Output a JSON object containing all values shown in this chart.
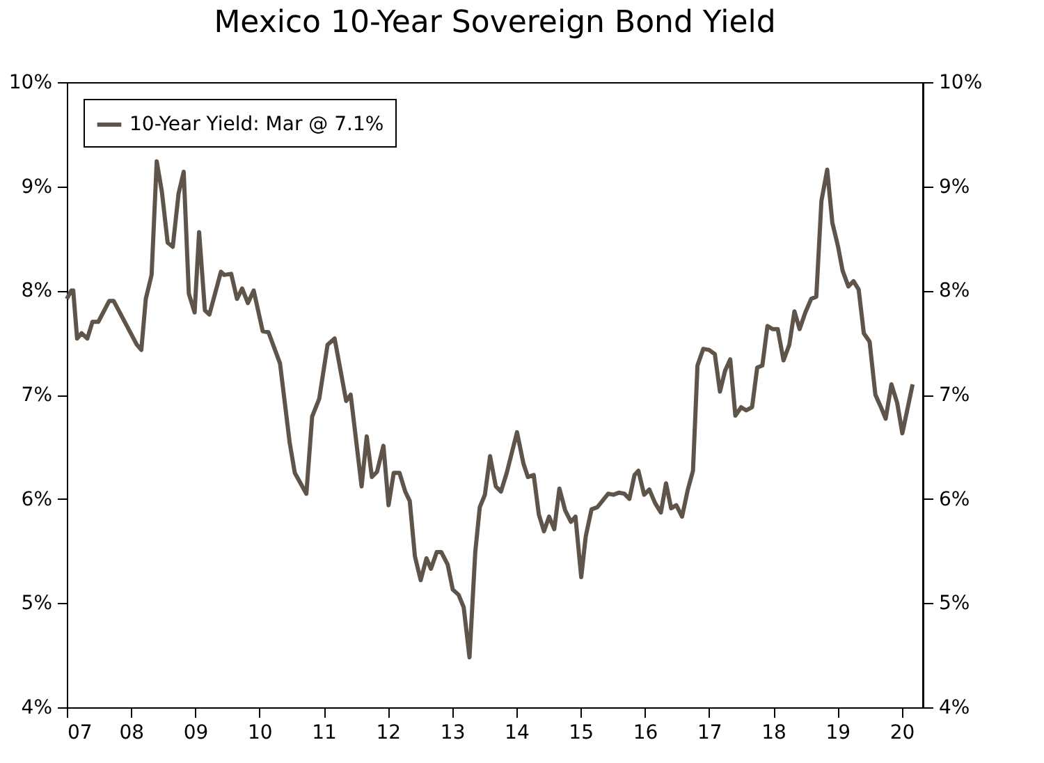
{
  "chart_data": {
    "type": "line",
    "title": "Mexico 10-Year Sovereign Bond Yield",
    "x": [
      2007.0,
      2007.07,
      2007.1,
      2007.16,
      2007.23,
      2007.32,
      2007.4,
      2007.49,
      2007.66,
      2007.73,
      2008.09,
      2008.16,
      2008.23,
      2008.32,
      2008.4,
      2008.48,
      2008.57,
      2008.65,
      2008.74,
      2008.82,
      2008.9,
      2008.99,
      2009.06,
      2009.15,
      2009.22,
      2009.4,
      2009.45,
      2009.56,
      2009.65,
      2009.73,
      2009.82,
      2009.91,
      2010.05,
      2010.14,
      2010.32,
      2010.47,
      2010.55,
      2010.73,
      2010.82,
      2010.93,
      2011.06,
      2011.17,
      2011.35,
      2011.42,
      2011.59,
      2011.67,
      2011.75,
      2011.83,
      2011.93,
      2012.01,
      2012.09,
      2012.18,
      2012.27,
      2012.34,
      2012.42,
      2012.51,
      2012.6,
      2012.67,
      2012.76,
      2012.83,
      2012.93,
      2013.01,
      2013.1,
      2013.18,
      2013.27,
      2013.36,
      2013.43,
      2013.51,
      2013.59,
      2013.68,
      2013.76,
      2013.85,
      2014.01,
      2014.11,
      2014.18,
      2014.27,
      2014.35,
      2014.43,
      2014.51,
      2014.59,
      2014.67,
      2014.76,
      2014.85,
      2014.92,
      2015.01,
      2015.08,
      2015.17,
      2015.26,
      2015.43,
      2015.51,
      2015.6,
      2015.68,
      2015.76,
      2015.84,
      2015.9,
      2015.99,
      2016.07,
      2016.16,
      2016.25,
      2016.33,
      2016.41,
      2016.49,
      2016.58,
      2016.67,
      2016.75,
      2016.82,
      2016.91,
      2017.0,
      2017.09,
      2017.17,
      2017.25,
      2017.33,
      2017.41,
      2017.5,
      2017.58,
      2017.67,
      2017.75,
      2017.83,
      2017.91,
      2017.99,
      2018.07,
      2018.16,
      2018.25,
      2018.33,
      2018.41,
      2018.5,
      2018.59,
      2018.67,
      2018.75,
      2018.84,
      2018.92,
      2019.01,
      2019.08,
      2019.17,
      2019.25,
      2019.33,
      2019.41,
      2019.5,
      2019.59,
      2019.67,
      2019.75,
      2019.84,
      2019.93,
      2020.01,
      2020.17
    ],
    "series": [
      {
        "name": "10-Year Yield: Mar @ 7.1%",
        "color": "#5f5449",
        "values": [
          7.92,
          8.0,
          8.0,
          7.54,
          7.59,
          7.54,
          7.7,
          7.7,
          7.9,
          7.9,
          7.48,
          7.43,
          7.92,
          8.15,
          9.24,
          8.95,
          8.46,
          8.42,
          8.93,
          9.14,
          7.97,
          7.79,
          8.56,
          7.81,
          7.77,
          8.18,
          8.15,
          8.16,
          7.92,
          8.02,
          7.88,
          8.0,
          7.61,
          7.6,
          7.3,
          6.54,
          6.25,
          6.05,
          6.79,
          6.96,
          7.48,
          7.54,
          6.94,
          7.0,
          6.12,
          6.6,
          6.21,
          6.26,
          6.51,
          5.94,
          6.25,
          6.25,
          6.07,
          5.98,
          5.45,
          5.22,
          5.43,
          5.33,
          5.49,
          5.49,
          5.37,
          5.13,
          5.08,
          4.96,
          4.48,
          5.49,
          5.92,
          6.04,
          6.41,
          6.12,
          6.07,
          6.25,
          6.64,
          6.34,
          6.21,
          6.23,
          5.85,
          5.69,
          5.83,
          5.71,
          6.1,
          5.89,
          5.78,
          5.83,
          5.25,
          5.64,
          5.9,
          5.92,
          6.05,
          6.04,
          6.06,
          6.05,
          6.0,
          6.23,
          6.27,
          6.04,
          6.09,
          5.96,
          5.87,
          6.15,
          5.91,
          5.94,
          5.83,
          6.09,
          6.27,
          7.28,
          7.44,
          7.43,
          7.39,
          7.03,
          7.23,
          7.34,
          6.8,
          6.88,
          6.85,
          6.88,
          7.26,
          7.28,
          7.66,
          7.63,
          7.63,
          7.33,
          7.48,
          7.8,
          7.63,
          7.79,
          7.92,
          7.94,
          8.86,
          9.16,
          8.65,
          8.42,
          8.19,
          8.04,
          8.09,
          8.01,
          7.59,
          7.51,
          7.0,
          6.89,
          6.77,
          7.1,
          6.92,
          6.63,
          7.1
        ]
      }
    ],
    "xlim": [
      2007,
      2020.33
    ],
    "xticks": [
      {
        "value": 2007,
        "label": "07"
      },
      {
        "value": 2008,
        "label": "08"
      },
      {
        "value": 2009,
        "label": "09"
      },
      {
        "value": 2010,
        "label": "10"
      },
      {
        "value": 2011,
        "label": "11"
      },
      {
        "value": 2012,
        "label": "12"
      },
      {
        "value": 2013,
        "label": "13"
      },
      {
        "value": 2014,
        "label": "14"
      },
      {
        "value": 2015,
        "label": "15"
      },
      {
        "value": 2016,
        "label": "16"
      },
      {
        "value": 2017,
        "label": "17"
      },
      {
        "value": 2018,
        "label": "18"
      },
      {
        "value": 2019,
        "label": "19"
      },
      {
        "value": 2020,
        "label": "20"
      }
    ],
    "ylim": [
      4,
      10
    ],
    "yticks": [
      {
        "value": 4,
        "label": "4%"
      },
      {
        "value": 5,
        "label": "5%"
      },
      {
        "value": 6,
        "label": "6%"
      },
      {
        "value": 7,
        "label": "7%"
      },
      {
        "value": 8,
        "label": "8%"
      },
      {
        "value": 9,
        "label": "9%"
      },
      {
        "value": 10,
        "label": "10%"
      }
    ],
    "y2lim": [
      4,
      10
    ],
    "y2ticks": [
      {
        "value": 4,
        "label": "4%"
      },
      {
        "value": 5,
        "label": "5%"
      },
      {
        "value": 6,
        "label": "6%"
      },
      {
        "value": 7,
        "label": "7%"
      },
      {
        "value": 8,
        "label": "8%"
      },
      {
        "value": 9,
        "label": "9%"
      },
      {
        "value": 10,
        "label": "10%"
      }
    ],
    "legend": "top left",
    "grid": false,
    "line_style": "solid",
    "marker": "none"
  }
}
